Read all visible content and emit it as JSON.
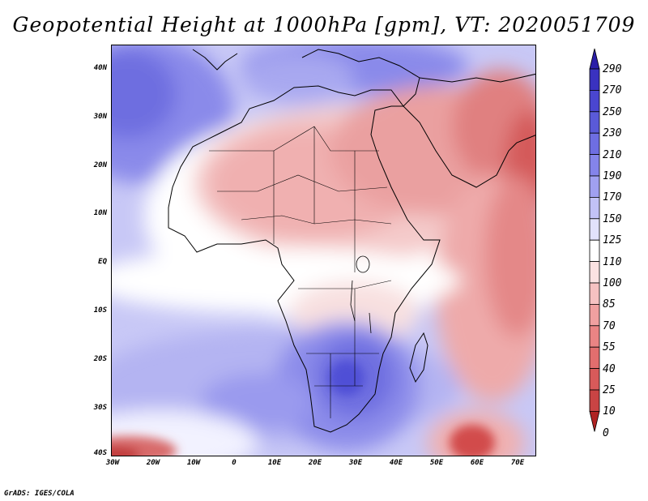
{
  "title": "Geopotential Height at 1000hPa [gpm], VT: 2020051709",
  "credit": "GrADS: IGES/COLA",
  "map": {
    "region": "Africa",
    "projection": "latlon",
    "lon_range": [
      -30,
      75
    ],
    "lat_range": [
      -40,
      45
    ],
    "lat_labels": [
      "40N",
      "30N",
      "20N",
      "10N",
      "EQ",
      "10S",
      "20S",
      "30S",
      "40S"
    ],
    "lon_labels": [
      "30W",
      "20W",
      "10W",
      "0",
      "10E",
      "20E",
      "30E",
      "40E",
      "50E",
      "60E",
      "70E"
    ]
  },
  "colorbar": {
    "levels": [
      "290",
      "270",
      "250",
      "230",
      "210",
      "190",
      "170",
      "150",
      "125",
      "110",
      "100",
      "85",
      "70",
      "55",
      "40",
      "25",
      "10",
      "0"
    ],
    "colors": [
      "#2a1ea8",
      "#3a32c0",
      "#4a46d0",
      "#5a5ad8",
      "#6e6ee2",
      "#8484ea",
      "#a0a0f0",
      "#c2c2f6",
      "#e2e2fb",
      "#ffffff",
      "#fbe2e2",
      "#f6c2c2",
      "#f0a0a0",
      "#ea8484",
      "#e26e6e",
      "#d85a5a",
      "#c94444",
      "#b02222"
    ]
  }
}
